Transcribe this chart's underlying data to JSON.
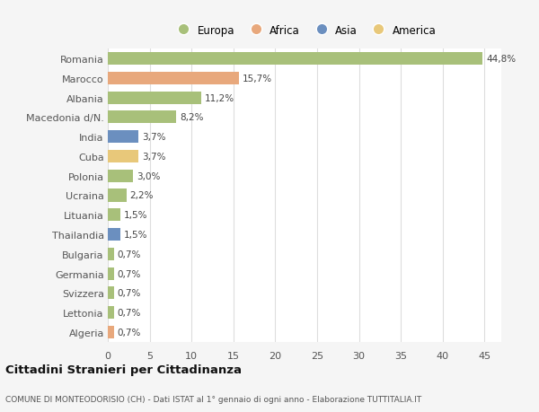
{
  "categories": [
    "Romania",
    "Marocco",
    "Albania",
    "Macedonia d/N.",
    "India",
    "Cuba",
    "Polonia",
    "Ucraina",
    "Lituania",
    "Thailandia",
    "Bulgaria",
    "Germania",
    "Svizzera",
    "Lettonia",
    "Algeria"
  ],
  "values": [
    44.8,
    15.7,
    11.2,
    8.2,
    3.7,
    3.7,
    3.0,
    2.2,
    1.5,
    1.5,
    0.7,
    0.7,
    0.7,
    0.7,
    0.7
  ],
  "labels": [
    "44,8%",
    "15,7%",
    "11,2%",
    "8,2%",
    "3,7%",
    "3,7%",
    "3,0%",
    "2,2%",
    "1,5%",
    "1,5%",
    "0,7%",
    "0,7%",
    "0,7%",
    "0,7%",
    "0,7%"
  ],
  "colors": [
    "#a8c07a",
    "#e8a87c",
    "#a8c07a",
    "#a8c07a",
    "#6b8fbf",
    "#e8c87a",
    "#a8c07a",
    "#a8c07a",
    "#a8c07a",
    "#6b8fbf",
    "#a8c07a",
    "#a8c07a",
    "#a8c07a",
    "#a8c07a",
    "#e8a87c"
  ],
  "legend_labels": [
    "Europa",
    "Africa",
    "Asia",
    "America"
  ],
  "legend_colors": [
    "#a8c07a",
    "#e8a87c",
    "#6b8fbf",
    "#e8c87a"
  ],
  "title": "Cittadini Stranieri per Cittadinanza",
  "subtitle": "COMUNE DI MONTEODORISIO (CH) - Dati ISTAT al 1° gennaio di ogni anno - Elaborazione TUTTITALIA.IT",
  "xlim": [
    0,
    47
  ],
  "xticks": [
    0,
    5,
    10,
    15,
    20,
    25,
    30,
    35,
    40,
    45
  ],
  "background_color": "#f5f5f5",
  "bar_background": "#ffffff",
  "grid_color": "#dddddd"
}
